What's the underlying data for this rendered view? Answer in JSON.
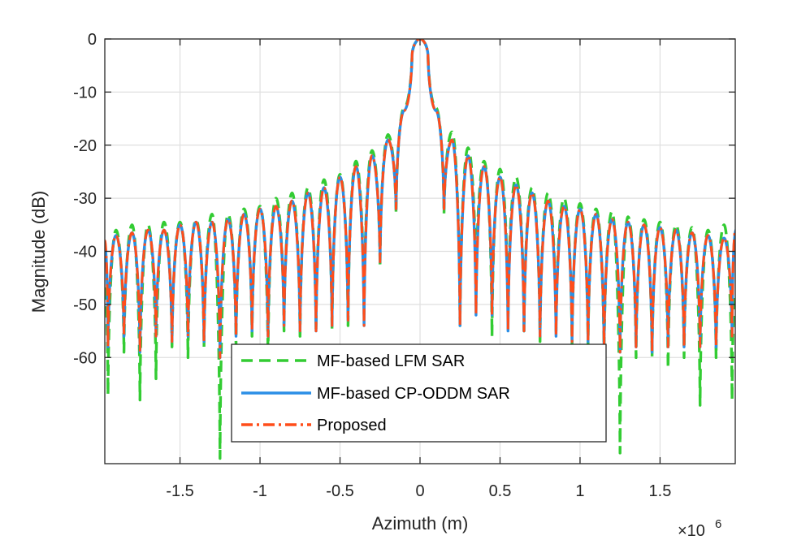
{
  "chart_data": {
    "type": "line",
    "title": "",
    "xlabel": "Azimuth (m)",
    "ylabel": "Magnitude (dB)",
    "x_exponent_label": "×10",
    "x_exponent_power": "6",
    "xlim": [
      -1.97,
      1.97
    ],
    "ylim": [
      -80,
      0
    ],
    "xticks": [
      -1.5,
      -1,
      -0.5,
      0,
      0.5,
      1,
      1.5
    ],
    "xtick_labels": [
      "-1.5",
      "-1",
      "-0.5",
      "0",
      "0.5",
      "1",
      "1.5"
    ],
    "yticks": [
      0,
      -10,
      -20,
      -30,
      -40,
      -50,
      -60
    ],
    "ytick_labels": [
      "0",
      "-10",
      "-20",
      "-30",
      "-40",
      "-50",
      "-60"
    ],
    "grid": true,
    "legend_position": "bottom-center",
    "sidelobe_spacing": 0.1,
    "series": [
      {
        "name": "MF-based LFM SAR",
        "color": "#33cc33",
        "style": "dashed",
        "peak_db": [
          [
            -1.9,
            -36
          ],
          [
            -1.8,
            -35
          ],
          [
            -1.7,
            -35
          ],
          [
            -1.6,
            -34.5
          ],
          [
            -1.5,
            -34.5
          ],
          [
            -1.4,
            -34
          ],
          [
            -1.3,
            -33
          ],
          [
            -1.2,
            -33
          ],
          [
            -1.1,
            -32
          ],
          [
            -1.0,
            -31.5
          ],
          [
            -0.9,
            -30
          ],
          [
            -0.8,
            -29
          ],
          [
            -0.7,
            -28
          ],
          [
            -0.6,
            -26.5
          ],
          [
            -0.5,
            -25.5
          ],
          [
            -0.4,
            -23
          ],
          [
            -0.3,
            -21
          ],
          [
            -0.2,
            -18
          ],
          [
            -0.1,
            -13
          ],
          [
            0.0,
            0
          ],
          [
            0.1,
            -13
          ],
          [
            0.2,
            -17.5
          ],
          [
            0.3,
            -20.5
          ],
          [
            0.4,
            -23
          ],
          [
            0.5,
            -24.5
          ],
          [
            0.6,
            -26
          ],
          [
            0.7,
            -28
          ],
          [
            0.8,
            -29
          ],
          [
            0.9,
            -30
          ],
          [
            1.0,
            -31
          ],
          [
            1.1,
            -32
          ],
          [
            1.2,
            -32.5
          ],
          [
            1.3,
            -33.5
          ],
          [
            1.4,
            -34
          ],
          [
            1.5,
            -34.5
          ],
          [
            1.6,
            -35
          ],
          [
            1.7,
            -35.5
          ],
          [
            1.8,
            -36
          ],
          [
            1.9,
            -35
          ]
        ],
        "null_db": [
          [
            -1.95,
            -67
          ],
          [
            -1.85,
            -59
          ],
          [
            -1.75,
            -68
          ],
          [
            -1.65,
            -64
          ],
          [
            -1.55,
            -58
          ],
          [
            -1.45,
            -60
          ],
          [
            -1.35,
            -58
          ],
          [
            -1.25,
            -79
          ],
          [
            -1.15,
            -58
          ],
          [
            -1.05,
            -56
          ],
          [
            -0.95,
            -60
          ],
          [
            -0.85,
            -55
          ],
          [
            -0.75,
            -56
          ],
          [
            -0.65,
            -55
          ],
          [
            -0.55,
            -55
          ],
          [
            -0.45,
            -54
          ],
          [
            -0.35,
            -52
          ],
          [
            -0.25,
            -43
          ],
          [
            -0.15,
            -33
          ],
          [
            -0.05,
            -3
          ],
          [
            0.05,
            -3
          ],
          [
            0.15,
            -33
          ],
          [
            0.25,
            -54
          ],
          [
            0.35,
            -48
          ],
          [
            0.45,
            -56
          ],
          [
            0.55,
            -53
          ],
          [
            0.65,
            -55
          ],
          [
            0.75,
            -57
          ],
          [
            0.85,
            -55
          ],
          [
            0.95,
            -58
          ],
          [
            1.05,
            -58
          ],
          [
            1.15,
            -60
          ],
          [
            1.25,
            -78
          ],
          [
            1.35,
            -60
          ],
          [
            1.45,
            -60
          ],
          [
            1.55,
            -62
          ],
          [
            1.65,
            -60
          ],
          [
            1.75,
            -69
          ],
          [
            1.85,
            -60
          ],
          [
            1.95,
            -68
          ]
        ]
      },
      {
        "name": "MF-based CP-ODDM SAR",
        "color": "#2b8fe6",
        "style": "solid",
        "peak_db": [
          [
            -1.9,
            -37
          ],
          [
            -1.8,
            -36.5
          ],
          [
            -1.7,
            -36
          ],
          [
            -1.6,
            -36
          ],
          [
            -1.5,
            -35
          ],
          [
            -1.4,
            -34.5
          ],
          [
            -1.3,
            -34.5
          ],
          [
            -1.2,
            -34
          ],
          [
            -1.1,
            -33
          ],
          [
            -1.0,
            -32
          ],
          [
            -0.9,
            -31.5
          ],
          [
            -0.8,
            -30.5
          ],
          [
            -0.7,
            -29
          ],
          [
            -0.6,
            -28
          ],
          [
            -0.5,
            -26
          ],
          [
            -0.4,
            -24
          ],
          [
            -0.3,
            -22
          ],
          [
            -0.2,
            -19
          ],
          [
            -0.1,
            -13.5
          ],
          [
            0.0,
            0
          ],
          [
            0.1,
            -13.5
          ],
          [
            0.2,
            -19
          ],
          [
            0.3,
            -22
          ],
          [
            0.4,
            -24
          ],
          [
            0.5,
            -26
          ],
          [
            0.6,
            -27.5
          ],
          [
            0.7,
            -29
          ],
          [
            0.8,
            -30.5
          ],
          [
            0.9,
            -31.5
          ],
          [
            1.0,
            -32
          ],
          [
            1.1,
            -33
          ],
          [
            1.2,
            -34
          ],
          [
            1.3,
            -34.5
          ],
          [
            1.4,
            -35
          ],
          [
            1.5,
            -35.5
          ],
          [
            1.6,
            -36
          ],
          [
            1.7,
            -36.5
          ],
          [
            1.8,
            -37
          ],
          [
            1.9,
            -37.5
          ]
        ],
        "null_db": [
          [
            -1.95,
            -58
          ],
          [
            -1.85,
            -56
          ],
          [
            -1.75,
            -59
          ],
          [
            -1.65,
            -56
          ],
          [
            -1.55,
            -57
          ],
          [
            -1.45,
            -56
          ],
          [
            -1.35,
            -57
          ],
          [
            -1.25,
            -60
          ],
          [
            -1.15,
            -56
          ],
          [
            -1.05,
            -55
          ],
          [
            -0.95,
            -56
          ],
          [
            -0.85,
            -54
          ],
          [
            -0.75,
            -55
          ],
          [
            -0.65,
            -55
          ],
          [
            -0.55,
            -54
          ],
          [
            -0.45,
            -53
          ],
          [
            -0.35,
            -54
          ],
          [
            -0.25,
            -42
          ],
          [
            -0.15,
            -32
          ],
          [
            -0.05,
            -3
          ],
          [
            0.05,
            -3
          ],
          [
            0.15,
            -32
          ],
          [
            0.25,
            -54
          ],
          [
            0.35,
            -52
          ],
          [
            0.45,
            -52
          ],
          [
            0.55,
            -55
          ],
          [
            0.65,
            -55
          ],
          [
            0.75,
            -56
          ],
          [
            0.85,
            -56
          ],
          [
            0.95,
            -57
          ],
          [
            1.05,
            -57
          ],
          [
            1.15,
            -58
          ],
          [
            1.25,
            -59
          ],
          [
            1.35,
            -58
          ],
          [
            1.45,
            -59
          ],
          [
            1.55,
            -58
          ],
          [
            1.65,
            -58
          ],
          [
            1.75,
            -58
          ],
          [
            1.85,
            -58
          ],
          [
            1.95,
            -56
          ]
        ]
      },
      {
        "name": "Proposed",
        "color": "#ff4d1a",
        "style": "dashdot",
        "peak_db": [
          [
            -1.9,
            -37
          ],
          [
            -1.8,
            -36.5
          ],
          [
            -1.7,
            -36
          ],
          [
            -1.6,
            -36
          ],
          [
            -1.5,
            -35
          ],
          [
            -1.4,
            -34.5
          ],
          [
            -1.3,
            -34.5
          ],
          [
            -1.2,
            -34
          ],
          [
            -1.1,
            -33
          ],
          [
            -1.0,
            -32
          ],
          [
            -0.9,
            -31.5
          ],
          [
            -0.8,
            -30.5
          ],
          [
            -0.7,
            -29
          ],
          [
            -0.6,
            -28
          ],
          [
            -0.5,
            -26
          ],
          [
            -0.4,
            -24
          ],
          [
            -0.3,
            -22
          ],
          [
            -0.2,
            -19
          ],
          [
            -0.1,
            -13.5
          ],
          [
            0.0,
            0
          ],
          [
            0.1,
            -13.5
          ],
          [
            0.2,
            -19
          ],
          [
            0.3,
            -22
          ],
          [
            0.4,
            -24
          ],
          [
            0.5,
            -26
          ],
          [
            0.6,
            -27.5
          ],
          [
            0.7,
            -29
          ],
          [
            0.8,
            -30.5
          ],
          [
            0.9,
            -31.5
          ],
          [
            1.0,
            -32
          ],
          [
            1.1,
            -33
          ],
          [
            1.2,
            -34
          ],
          [
            1.3,
            -34.5
          ],
          [
            1.4,
            -35
          ],
          [
            1.5,
            -35.5
          ],
          [
            1.6,
            -36
          ],
          [
            1.7,
            -36.5
          ],
          [
            1.8,
            -37
          ],
          [
            1.9,
            -37.5
          ]
        ],
        "null_db": [
          [
            -1.95,
            -58
          ],
          [
            -1.85,
            -56
          ],
          [
            -1.75,
            -59
          ],
          [
            -1.65,
            -56
          ],
          [
            -1.55,
            -57
          ],
          [
            -1.45,
            -56
          ],
          [
            -1.35,
            -57
          ],
          [
            -1.25,
            -60
          ],
          [
            -1.15,
            -56
          ],
          [
            -1.05,
            -55
          ],
          [
            -0.95,
            -56
          ],
          [
            -0.85,
            -54
          ],
          [
            -0.75,
            -55
          ],
          [
            -0.65,
            -55
          ],
          [
            -0.55,
            -54
          ],
          [
            -0.45,
            -53
          ],
          [
            -0.35,
            -54
          ],
          [
            -0.25,
            -42
          ],
          [
            -0.15,
            -32
          ],
          [
            -0.05,
            -3
          ],
          [
            0.05,
            -3
          ],
          [
            0.15,
            -32
          ],
          [
            0.25,
            -54
          ],
          [
            0.35,
            -52
          ],
          [
            0.45,
            -52
          ],
          [
            0.55,
            -55
          ],
          [
            0.65,
            -55
          ],
          [
            0.75,
            -56
          ],
          [
            0.85,
            -56
          ],
          [
            0.95,
            -57
          ],
          [
            1.05,
            -57
          ],
          [
            1.15,
            -58
          ],
          [
            1.25,
            -59
          ],
          [
            1.35,
            -58
          ],
          [
            1.45,
            -59
          ],
          [
            1.55,
            -58
          ],
          [
            1.65,
            -58
          ],
          [
            1.75,
            -58
          ],
          [
            1.85,
            -58
          ],
          [
            1.95,
            -56
          ]
        ]
      }
    ]
  }
}
